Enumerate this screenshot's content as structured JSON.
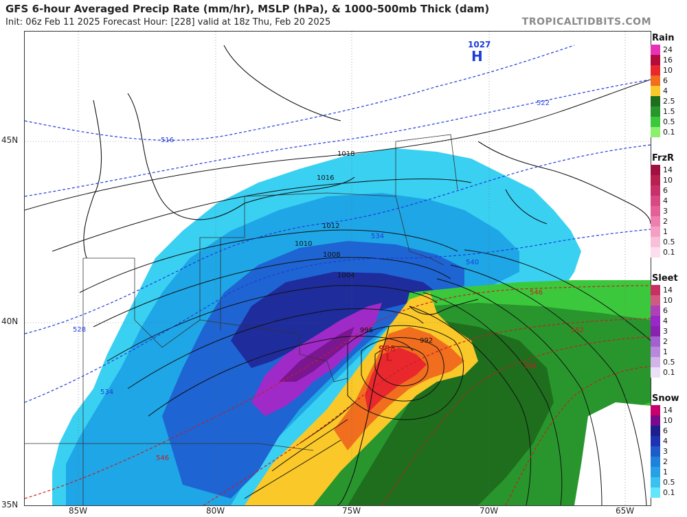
{
  "header": {
    "title": "GFS 6-hour Averaged Precip Rate (mm/hr), MSLP (hPa), & 1000-500mb Thick (dam)",
    "subtitle": "Init: 06z Feb 11 2025   Forecast Hour: [228]   valid at 18z Thu, Feb 20 2025",
    "brand": "TROPICALTIDBITS.COM"
  },
  "axes": {
    "lon_labels": [
      "85W",
      "80W",
      "75W",
      "70W",
      "65W"
    ],
    "lat_labels": [
      "45N",
      "40N",
      "35N"
    ]
  },
  "pressure_centers": {
    "high_label": "H",
    "high_value": "1027",
    "low_label": "L",
    "low_value": "988"
  },
  "isobars": [
    "1018",
    "1016",
    "1012",
    "1010",
    "1008",
    "1004",
    "996",
    "992",
    "988"
  ],
  "thickness": [
    "516",
    "522",
    "528",
    "534",
    "540",
    "546",
    "552",
    "558"
  ],
  "legends": [
    {
      "title": "Rain",
      "levels": [
        "24",
        "16",
        "10",
        "6",
        "4",
        "2.5",
        "1.5",
        "0.5",
        "0.1"
      ],
      "colors": [
        "#e632b4",
        "#b40a3c",
        "#e8282d",
        "#f06e1e",
        "#fac828",
        "#1e6e1e",
        "#28962d",
        "#3cc83c",
        "#8cf06e"
      ]
    },
    {
      "title": "FrzR",
      "levels": [
        "14",
        "10",
        "6",
        "4",
        "3",
        "2",
        "1",
        "0.5",
        "0.1"
      ],
      "colors": [
        "#a01040",
        "#b8204e",
        "#c8306a",
        "#d84882",
        "#e46098",
        "#ee80b0",
        "#f4a0c4",
        "#f8c0d8",
        "#fcdeec"
      ]
    },
    {
      "title": "Sleet",
      "levels": [
        "14",
        "10",
        "6",
        "4",
        "3",
        "2",
        "1",
        "0.5",
        "0.1"
      ],
      "colors": [
        "#c83060",
        "#d05a82",
        "#b040b8",
        "#9a28c8",
        "#8a22b0",
        "#a560d0",
        "#b988dc",
        "#d2b4ea",
        "#ece0f6"
      ]
    },
    {
      "title": "Snow",
      "levels": [
        "14",
        "10",
        "6",
        "4",
        "3",
        "2",
        "1",
        "0.5",
        "0.1"
      ],
      "colors": [
        "#c8006e",
        "#7a0a8c",
        "#1e1e8c",
        "#1e32b4",
        "#1e5ac8",
        "#1e82dc",
        "#28a0e6",
        "#3cc0f0",
        "#64e6fa"
      ]
    }
  ]
}
